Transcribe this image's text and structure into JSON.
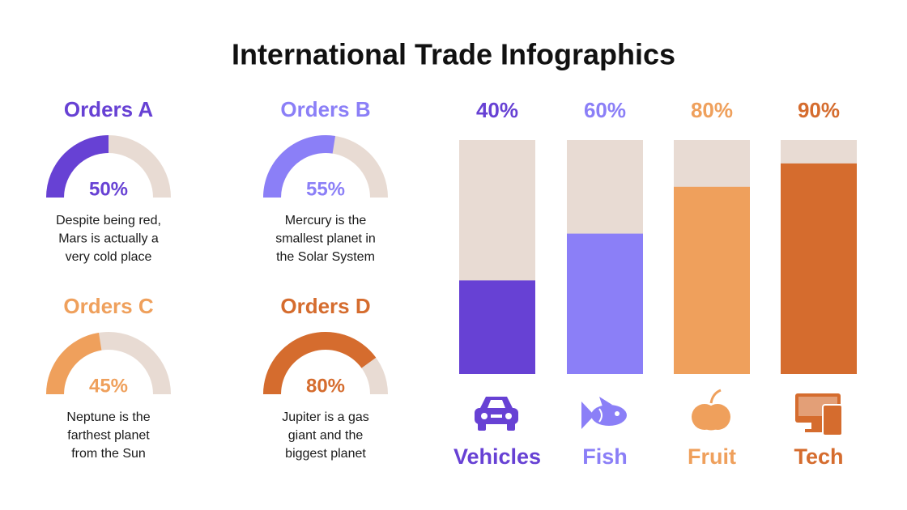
{
  "title": "International Trade Infographics",
  "chart_data": [
    {
      "type": "gauge",
      "title": "Orders A",
      "values": [
        50
      ],
      "value_labels": [
        "50%"
      ],
      "color": "#6741d4",
      "track_color": "#e8dbd3",
      "description": [
        "Despite being red,",
        "Mars is actually a",
        "very cold place"
      ]
    },
    {
      "type": "gauge",
      "title": "Orders B",
      "values": [
        55
      ],
      "value_labels": [
        "55%"
      ],
      "color": "#8b7ff7",
      "track_color": "#e8dbd3",
      "description": [
        "Mercury is the",
        "smallest planet in",
        "the Solar System"
      ]
    },
    {
      "type": "gauge",
      "title": "Orders C",
      "values": [
        45
      ],
      "value_labels": [
        "45%"
      ],
      "color": "#efa05c",
      "track_color": "#e8dbd3",
      "description": [
        "Neptune is the",
        "farthest planet",
        "from the Sun"
      ]
    },
    {
      "type": "gauge",
      "title": "Orders D",
      "values": [
        80
      ],
      "value_labels": [
        "80%"
      ],
      "color": "#d56c2e",
      "track_color": "#e8dbd3",
      "description": [
        "Jupiter is a gas",
        "giant and the",
        "biggest planet"
      ]
    },
    {
      "type": "bar",
      "categories": [
        "Vehicles",
        "Fish",
        "Fruit",
        "Tech"
      ],
      "values": [
        40,
        60,
        80,
        90
      ],
      "value_labels": [
        "40%",
        "60%",
        "80%",
        "90%"
      ],
      "colors": [
        "#6741d4",
        "#8b7ff7",
        "#efa05c",
        "#d56c2e"
      ],
      "track_color": "#e8dbd3",
      "ylim": [
        0,
        100
      ]
    }
  ]
}
